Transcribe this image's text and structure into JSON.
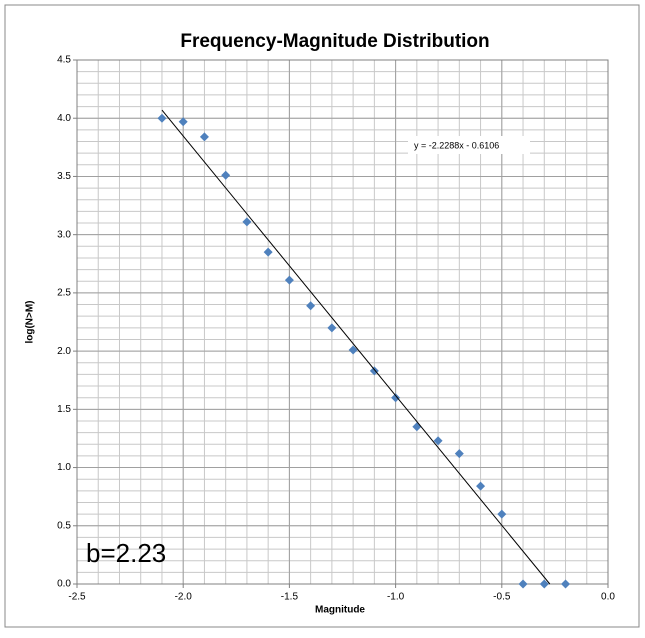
{
  "chart_data": {
    "type": "scatter",
    "title": "Frequency-Magnitude Distribution",
    "x_label": "Magnitude",
    "y_label": "log(N>M)",
    "x": [
      -2.1,
      -2.0,
      -1.9,
      -1.8,
      -1.7,
      -1.6,
      -1.5,
      -1.4,
      -1.3,
      -1.2,
      -1.1,
      -1.0,
      -0.9,
      -0.8,
      -0.7,
      -0.6,
      -0.5,
      -0.4,
      -0.3,
      -0.2
    ],
    "series": [
      {
        "name": "log(N>M)",
        "color": "#4f81bd",
        "values": [
          4.0,
          3.97,
          3.84,
          3.51,
          3.11,
          2.85,
          2.61,
          2.39,
          2.2,
          2.01,
          1.83,
          1.6,
          1.35,
          1.23,
          1.12,
          0.84,
          0.6,
          0.0,
          0.0,
          0.0
        ]
      }
    ],
    "trendline": {
      "slope": -2.2288,
      "intercept": -0.6106,
      "color": "#000000"
    },
    "trendline_label": "y = -2.2288x - 0.6106",
    "annotation": "b=2.23",
    "xlim": [
      -2.5,
      0.0
    ],
    "ylim": [
      0.0,
      4.5
    ],
    "xticks": [
      {
        "value": -2.5,
        "label": "-2.5"
      },
      {
        "value": -2.0,
        "label": "-2.0"
      },
      {
        "value": -1.5,
        "label": "-1.5"
      },
      {
        "value": -1.0,
        "label": "-1.0"
      },
      {
        "value": -0.5,
        "label": "-0.5"
      },
      {
        "value": 0.0,
        "label": "0.0"
      }
    ],
    "yticks": [
      {
        "value": 0.0,
        "label": "0.0"
      },
      {
        "value": 0.5,
        "label": "0.5"
      },
      {
        "value": 1.0,
        "label": "1.0"
      },
      {
        "value": 1.5,
        "label": "1.5"
      },
      {
        "value": 2.0,
        "label": "2.0"
      },
      {
        "value": 2.5,
        "label": "2.5"
      },
      {
        "value": 3.0,
        "label": "3.0"
      },
      {
        "value": 3.5,
        "label": "3.5"
      },
      {
        "value": 4.0,
        "label": "4.0"
      },
      {
        "value": 4.5,
        "label": "4.5"
      }
    ],
    "grid": true,
    "minor_grid": 0.1
  }
}
